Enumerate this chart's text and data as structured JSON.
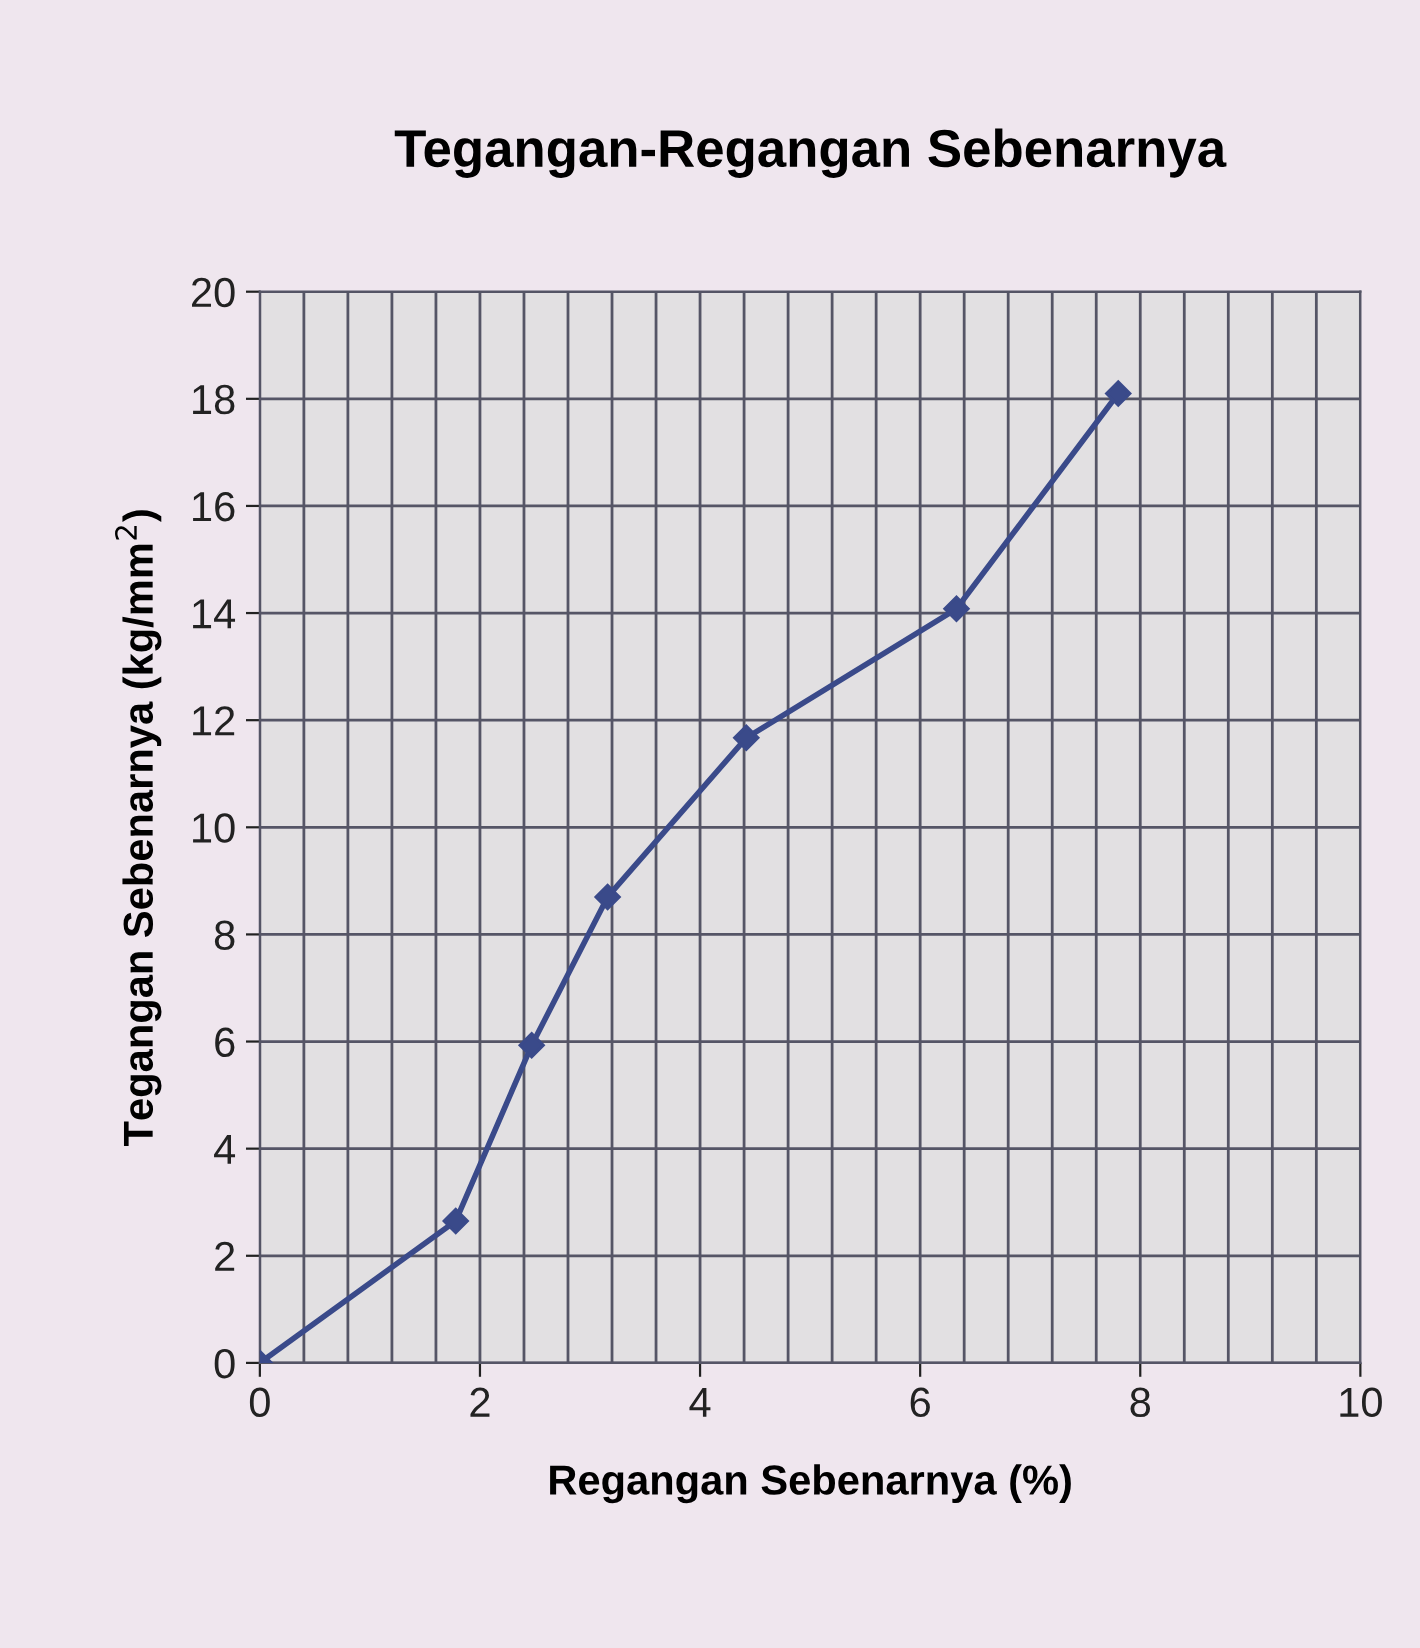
{
  "chart_data": {
    "type": "line",
    "title": "Tegangan-Regangan Sebenarnya",
    "xlabel": "Regangan Sebenarnya (%)",
    "ylabel": "Tegangan Sebenarnya (kg/mm$^{2}$)",
    "x": [
      0,
      1.78,
      2.47,
      3.16,
      4.42,
      6.33,
      7.8
    ],
    "series": [
      {
        "color": "#3a4a8a",
        "values": [
          0,
          2.65,
          5.93,
          8.7,
          11.67,
          14.08,
          18.1
        ]
      }
    ],
    "xlim": [
      0,
      10
    ],
    "ylim": [
      0,
      20
    ],
    "xticks": [
      0,
      {
        "value": 0.4,
        "label": null
      },
      {
        "value": 0.8,
        "label": null
      },
      {
        "value": 1.2,
        "label": null
      },
      {
        "value": 1.6,
        "label": null
      },
      2,
      {
        "value": 2.4,
        "label": null
      },
      {
        "value": 2.8,
        "label": null
      },
      {
        "value": 3.2,
        "label": null
      },
      {
        "value": 3.6,
        "label": null
      },
      4,
      {
        "value": 4.4,
        "label": null
      },
      {
        "value": 4.8,
        "label": null
      },
      {
        "value": 5.2,
        "label": null
      },
      {
        "value": 5.6,
        "label": null
      },
      6,
      {
        "value": 6.4,
        "label": null
      },
      {
        "value": 6.8,
        "label": null
      },
      {
        "value": 7.2,
        "label": null
      },
      {
        "value": 7.6,
        "label": null
      },
      8,
      {
        "value": 8.4,
        "label": null
      },
      {
        "value": 8.8,
        "label": null
      },
      {
        "value": 9.2,
        "label": null
      },
      {
        "value": 9.6,
        "label": null
      },
      10
    ],
    "yticks": [
      0,
      2,
      4,
      6,
      8,
      10,
      12,
      14,
      16,
      18,
      20
    ],
    "grid": true,
    "marker": "diamond",
    "line_style": "solid"
  }
}
